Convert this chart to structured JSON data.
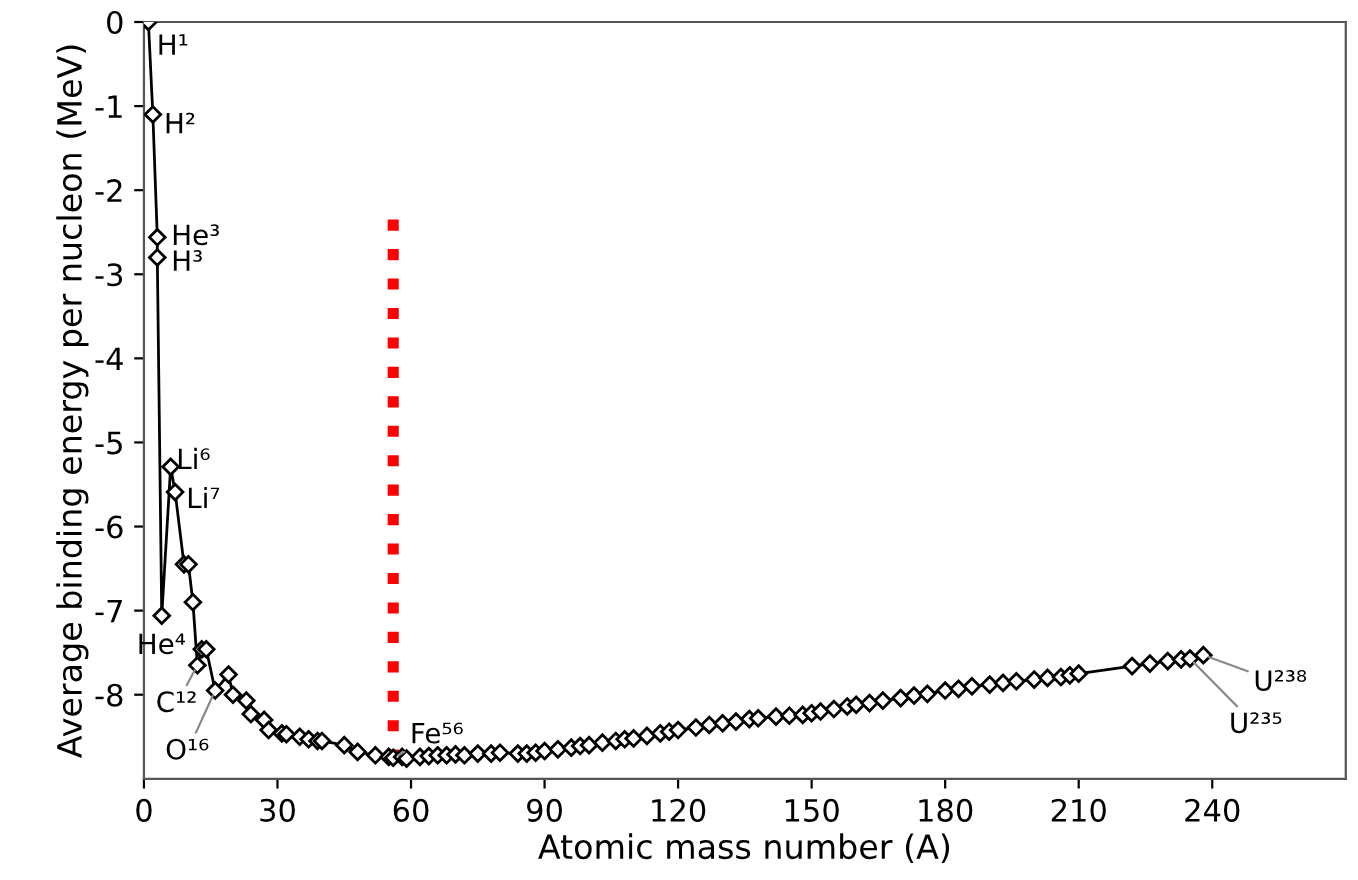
{
  "chart_data": {
    "type": "line",
    "xlabel": "Atomic mass number (A)",
    "ylabel": "Average binding energy per nucleon (MeV)",
    "xlim": [
      0,
      270
    ],
    "xticks": [
      0,
      30,
      60,
      90,
      120,
      150,
      180,
      210,
      240
    ],
    "ylim": [
      -9,
      0
    ],
    "yticks": [
      0,
      -1,
      -2,
      -3,
      -4,
      -5,
      -6,
      -7,
      -8
    ],
    "grid": false,
    "legend": false,
    "series": [
      {
        "color": "#000000",
        "marker": "diamond",
        "line_style": "solid",
        "x": [
          1,
          2,
          3,
          3,
          4,
          6,
          7,
          9,
          10,
          11,
          12,
          13,
          14,
          16,
          19,
          20,
          23,
          24,
          27,
          28,
          31,
          32,
          35,
          37,
          39,
          40,
          45,
          48,
          52,
          55,
          56,
          58,
          59,
          62,
          64,
          66,
          68,
          70,
          72,
          75,
          78,
          80,
          84,
          86,
          88,
          90,
          93,
          96,
          98,
          100,
          103,
          106,
          108,
          110,
          113,
          116,
          118,
          120,
          124,
          127,
          130,
          133,
          136,
          138,
          142,
          145,
          148,
          150,
          152,
          155,
          158,
          160,
          163,
          166,
          170,
          173,
          176,
          180,
          183,
          186,
          190,
          193,
          196,
          200,
          203,
          206,
          208,
          210,
          222,
          226,
          230,
          233,
          235,
          238
        ],
        "values": [
          0,
          -1.1,
          -2.56,
          -2.8,
          -7.06,
          -5.29,
          -5.59,
          -6.45,
          -6.45,
          -6.9,
          -7.65,
          -7.46,
          -7.46,
          -7.95,
          -7.76,
          -8.0,
          -8.07,
          -8.23,
          -8.3,
          -8.42,
          -8.46,
          -8.47,
          -8.5,
          -8.53,
          -8.55,
          -8.55,
          -8.6,
          -8.68,
          -8.72,
          -8.74,
          -8.75,
          -8.74,
          -8.76,
          -8.74,
          -8.73,
          -8.72,
          -8.72,
          -8.71,
          -8.72,
          -8.7,
          -8.7,
          -8.69,
          -8.7,
          -8.7,
          -8.69,
          -8.67,
          -8.65,
          -8.63,
          -8.61,
          -8.6,
          -8.57,
          -8.55,
          -8.53,
          -8.52,
          -8.49,
          -8.46,
          -8.44,
          -8.42,
          -8.39,
          -8.36,
          -8.34,
          -8.32,
          -8.29,
          -8.28,
          -8.26,
          -8.25,
          -8.24,
          -8.22,
          -8.2,
          -8.17,
          -8.14,
          -8.12,
          -8.1,
          -8.07,
          -8.04,
          -8.01,
          -7.99,
          -7.95,
          -7.93,
          -7.9,
          -7.88,
          -7.86,
          -7.84,
          -7.82,
          -7.8,
          -7.79,
          -7.77,
          -7.75,
          -7.66,
          -7.63,
          -7.6,
          -7.58,
          -7.57,
          -7.53
        ]
      },
      {
        "type": "line",
        "color": "#ff0000",
        "marker": "none",
        "line_style": "dotted",
        "x": [
          56,
          56
        ],
        "values": [
          -2.35,
          -8.75
        ]
      }
    ],
    "annotations": [
      {
        "text": "H¹",
        "x": 1,
        "y": 0
      },
      {
        "text": "H²",
        "x": 2,
        "y": -1.1
      },
      {
        "text": "He³",
        "x": 3,
        "y": -2.56
      },
      {
        "text": "H³",
        "x": 3,
        "y": -2.8
      },
      {
        "text": "Li⁶",
        "x": 6,
        "y": -5.29
      },
      {
        "text": "Li⁷",
        "x": 7,
        "y": -5.59
      },
      {
        "text": "He⁴",
        "x": 4,
        "y": -7.06
      },
      {
        "text": "C¹²",
        "x": 12,
        "y": -7.65
      },
      {
        "text": "O¹⁶",
        "x": 16,
        "y": -7.95
      },
      {
        "text": "Fe⁵⁶",
        "x": 56,
        "y": -8.75
      },
      {
        "text": "U²³⁸",
        "x": 238,
        "y": -7.53
      },
      {
        "text": "U²³⁵",
        "x": 235,
        "y": -7.57
      }
    ]
  }
}
